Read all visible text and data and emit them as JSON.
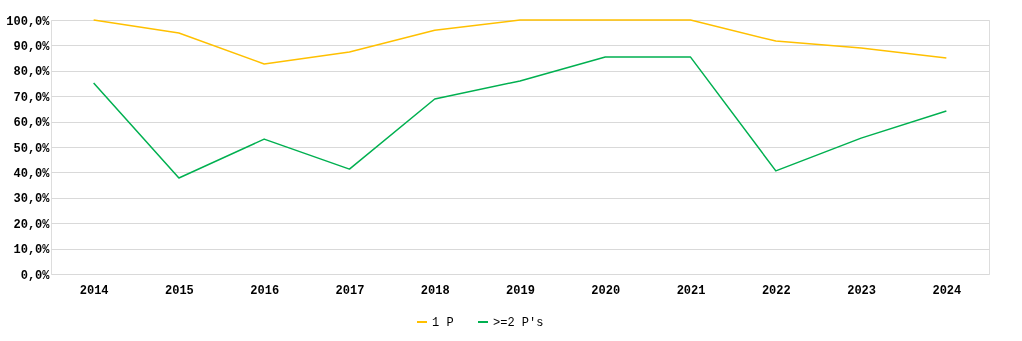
{
  "chart_data": {
    "type": "line",
    "categories": [
      "2014",
      "2015",
      "2016",
      "2017",
      "2018",
      "2019",
      "2020",
      "2021",
      "2022",
      "2023",
      "2024"
    ],
    "series": [
      {
        "name": "1 P",
        "color": "#ffc000",
        "values": [
          100,
          94.9,
          82.7,
          87.4,
          96,
          100,
          100,
          100,
          91.7,
          89,
          85
        ]
      },
      {
        "name": ">=2 P's",
        "color": "#00b050",
        "values": [
          75.2,
          37.8,
          53.1,
          41.3,
          68.9,
          76,
          85.4,
          85.4,
          40.6,
          53.5,
          64.2
        ]
      }
    ],
    "ylim": [
      0,
      100
    ],
    "yticks": [
      {
        "value": 0,
        "label": "0,0%"
      },
      {
        "value": 10,
        "label": "10,0%"
      },
      {
        "value": 20,
        "label": "20,0%"
      },
      {
        "value": 30,
        "label": "30,0%"
      },
      {
        "value": 40,
        "label": "40,0%"
      },
      {
        "value": 50,
        "label": "50,0%"
      },
      {
        "value": 60,
        "label": "60,0%"
      },
      {
        "value": 70,
        "label": "70,0%"
      },
      {
        "value": 80,
        "label": "80,0%"
      },
      {
        "value": 90,
        "label": "90,0%"
      },
      {
        "value": 100,
        "label": "100,0%"
      }
    ],
    "grid": "y",
    "legend": "bottom",
    "marker": "none",
    "line_style": "solid"
  }
}
